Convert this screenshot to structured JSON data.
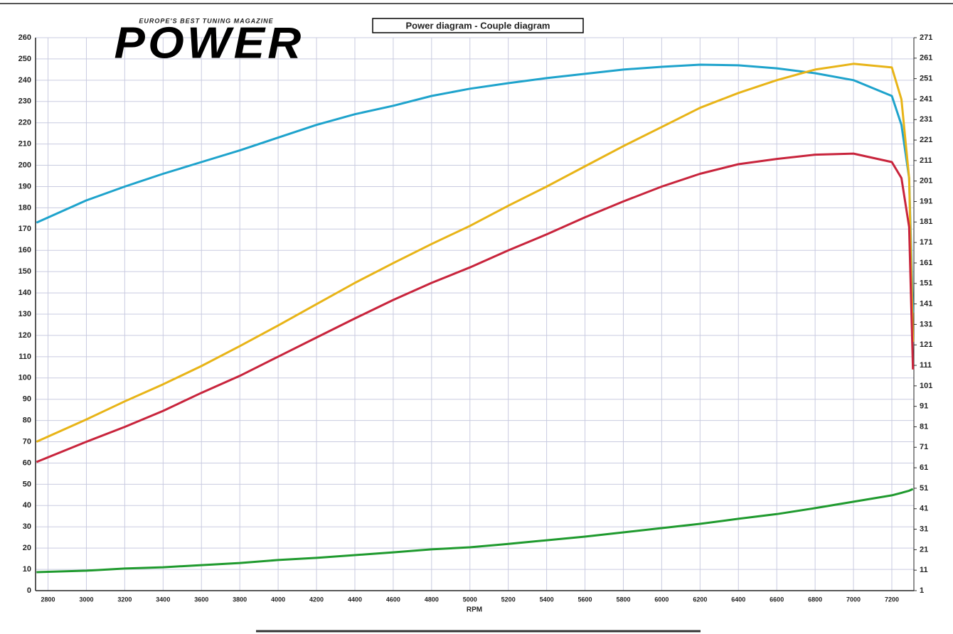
{
  "logo": {
    "tagline": "EUROPE'S BEST TUNING MAGAZINE",
    "name": "POWER"
  },
  "chart_data": {
    "type": "line",
    "title": "Power diagram - Couple diagram",
    "x_label": "RPM",
    "x": [
      2740,
      3000,
      3200,
      3400,
      3600,
      3800,
      4000,
      4200,
      4400,
      4600,
      4800,
      5000,
      5200,
      5400,
      5600,
      5800,
      6000,
      6200,
      6400,
      6600,
      6800,
      7000,
      7200,
      7250,
      7290,
      7310
    ],
    "series": [
      {
        "color": "#1ea3cc",
        "values": [
          173,
          183.5,
          190,
          196,
          201.5,
          207,
          213,
          219,
          224,
          228,
          232.6,
          236,
          238.6,
          241,
          243,
          245,
          246.3,
          247.3,
          247,
          245.6,
          243.3,
          240,
          232.6,
          219,
          194,
          130.7
        ]
      },
      {
        "color": "#e8b417",
        "values": [
          70,
          80.5,
          89,
          97,
          105.6,
          115,
          124.7,
          134.7,
          144.7,
          154,
          163,
          171.5,
          181,
          190,
          199.5,
          209,
          218,
          227,
          234,
          240,
          245,
          247.7,
          246,
          231,
          194,
          117
        ]
      },
      {
        "color": "#c8243c",
        "values": [
          60.5,
          70,
          77,
          84.5,
          93,
          101,
          110,
          119,
          128,
          136.7,
          144.7,
          152,
          160,
          167.5,
          175.5,
          183,
          190,
          196,
          200.5,
          203,
          205,
          205.5,
          201.5,
          194,
          171,
          104
        ]
      },
      {
        "color": "#1f9a2e",
        "values": [
          8.7,
          9.4,
          10.4,
          11,
          12,
          13,
          14.4,
          15.4,
          16.7,
          18,
          19.4,
          20.4,
          22,
          23.7,
          25.4,
          27.4,
          29.4,
          31.4,
          33.8,
          36,
          38.8,
          41.8,
          44.8,
          46,
          47,
          47.8
        ]
      }
    ],
    "xlim": [
      2735,
      7315
    ],
    "xticks": [
      2800,
      3000,
      3200,
      3400,
      3600,
      3800,
      4000,
      4200,
      4400,
      4600,
      4800,
      5000,
      5200,
      5400,
      5600,
      5800,
      6000,
      6200,
      6400,
      6600,
      6800,
      7000,
      7200
    ],
    "ylim": [
      0,
      260
    ],
    "yticks": [
      0,
      10,
      20,
      30,
      40,
      50,
      60,
      70,
      80,
      90,
      100,
      110,
      120,
      130,
      140,
      150,
      160,
      170,
      180,
      190,
      200,
      210,
      220,
      230,
      240,
      250,
      260
    ],
    "y2lim": [
      1,
      271
    ],
    "y2ticks": [
      1,
      11,
      21,
      31,
      41,
      51,
      61,
      71,
      81,
      91,
      101,
      111,
      121,
      131,
      141,
      151,
      161,
      171,
      181,
      191,
      201,
      211,
      221,
      231,
      241,
      251,
      261,
      271
    ],
    "grid": true
  }
}
